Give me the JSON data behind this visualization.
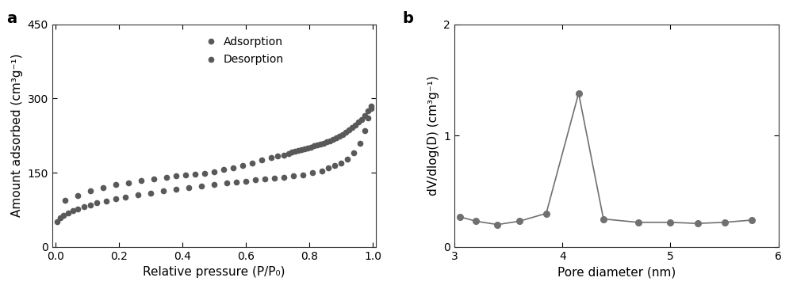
{
  "panel_a": {
    "title_label": "a",
    "xlabel": "Relative pressure (P/P₀)",
    "ylabel": "Amount adsorbed (cm³g⁻¹)",
    "ylim": [
      0,
      450
    ],
    "xlim": [
      -0.01,
      1.01
    ],
    "yticks": [
      0,
      150,
      300,
      450
    ],
    "xticks": [
      0.0,
      0.2,
      0.4,
      0.6,
      0.8,
      1.0
    ],
    "color": "#595959",
    "adsorption_x": [
      0.005,
      0.015,
      0.025,
      0.04,
      0.055,
      0.07,
      0.09,
      0.11,
      0.13,
      0.16,
      0.19,
      0.22,
      0.26,
      0.3,
      0.34,
      0.38,
      0.42,
      0.46,
      0.5,
      0.54,
      0.57,
      0.6,
      0.63,
      0.66,
      0.69,
      0.72,
      0.75,
      0.78,
      0.81,
      0.84,
      0.86,
      0.88,
      0.9,
      0.92,
      0.94,
      0.96,
      0.975,
      0.985,
      0.993
    ],
    "adsorption_y": [
      50,
      58,
      63,
      68,
      73,
      77,
      81,
      85,
      89,
      93,
      97,
      101,
      105,
      109,
      113,
      117,
      120,
      123,
      126,
      129,
      131,
      133,
      135,
      137,
      139,
      141,
      143,
      146,
      150,
      154,
      159,
      164,
      170,
      178,
      190,
      210,
      235,
      260,
      280
    ],
    "desorption_x": [
      0.993,
      0.985,
      0.975,
      0.965,
      0.955,
      0.945,
      0.935,
      0.925,
      0.915,
      0.905,
      0.895,
      0.885,
      0.875,
      0.865,
      0.855,
      0.845,
      0.835,
      0.825,
      0.815,
      0.805,
      0.795,
      0.785,
      0.775,
      0.765,
      0.755,
      0.745,
      0.735,
      0.72,
      0.7,
      0.68,
      0.65,
      0.62,
      0.59,
      0.56,
      0.53,
      0.5,
      0.47,
      0.44,
      0.41,
      0.38,
      0.35,
      0.31,
      0.27,
      0.23,
      0.19,
      0.15,
      0.11,
      0.07,
      0.03
    ],
    "desorption_y": [
      285,
      275,
      265,
      258,
      252,
      246,
      241,
      236,
      231,
      227,
      223,
      220,
      217,
      214,
      212,
      210,
      208,
      206,
      204,
      202,
      200,
      198,
      196,
      195,
      193,
      191,
      189,
      186,
      183,
      180,
      175,
      170,
      165,
      160,
      156,
      152,
      149,
      147,
      145,
      143,
      141,
      138,
      134,
      130,
      126,
      120,
      113,
      104,
      94
    ],
    "legend_adsorption": "Adsorption",
    "legend_desorption": "Desorption"
  },
  "panel_b": {
    "title_label": "b",
    "xlabel": "Pore diameter (nm)",
    "ylabel": "dV/dlog(D) (cm³g⁻¹)",
    "ylim": [
      0,
      2.0
    ],
    "xlim": [
      3.0,
      6.0
    ],
    "yticks": [
      0,
      1,
      2
    ],
    "xticks": [
      3,
      4,
      5,
      6
    ],
    "color": "#707070",
    "x": [
      3.05,
      3.2,
      3.4,
      3.6,
      3.85,
      4.15,
      4.38,
      4.7,
      5.0,
      5.25,
      5.5,
      5.75
    ],
    "y": [
      0.27,
      0.23,
      0.2,
      0.23,
      0.3,
      1.38,
      0.25,
      0.22,
      0.22,
      0.21,
      0.22,
      0.24
    ]
  },
  "figure_bg": "#ffffff",
  "axes_bg": "#ffffff",
  "spine_color": "#333333",
  "label_fontsize": 11,
  "tick_fontsize": 10,
  "panel_label_fontsize": 14
}
